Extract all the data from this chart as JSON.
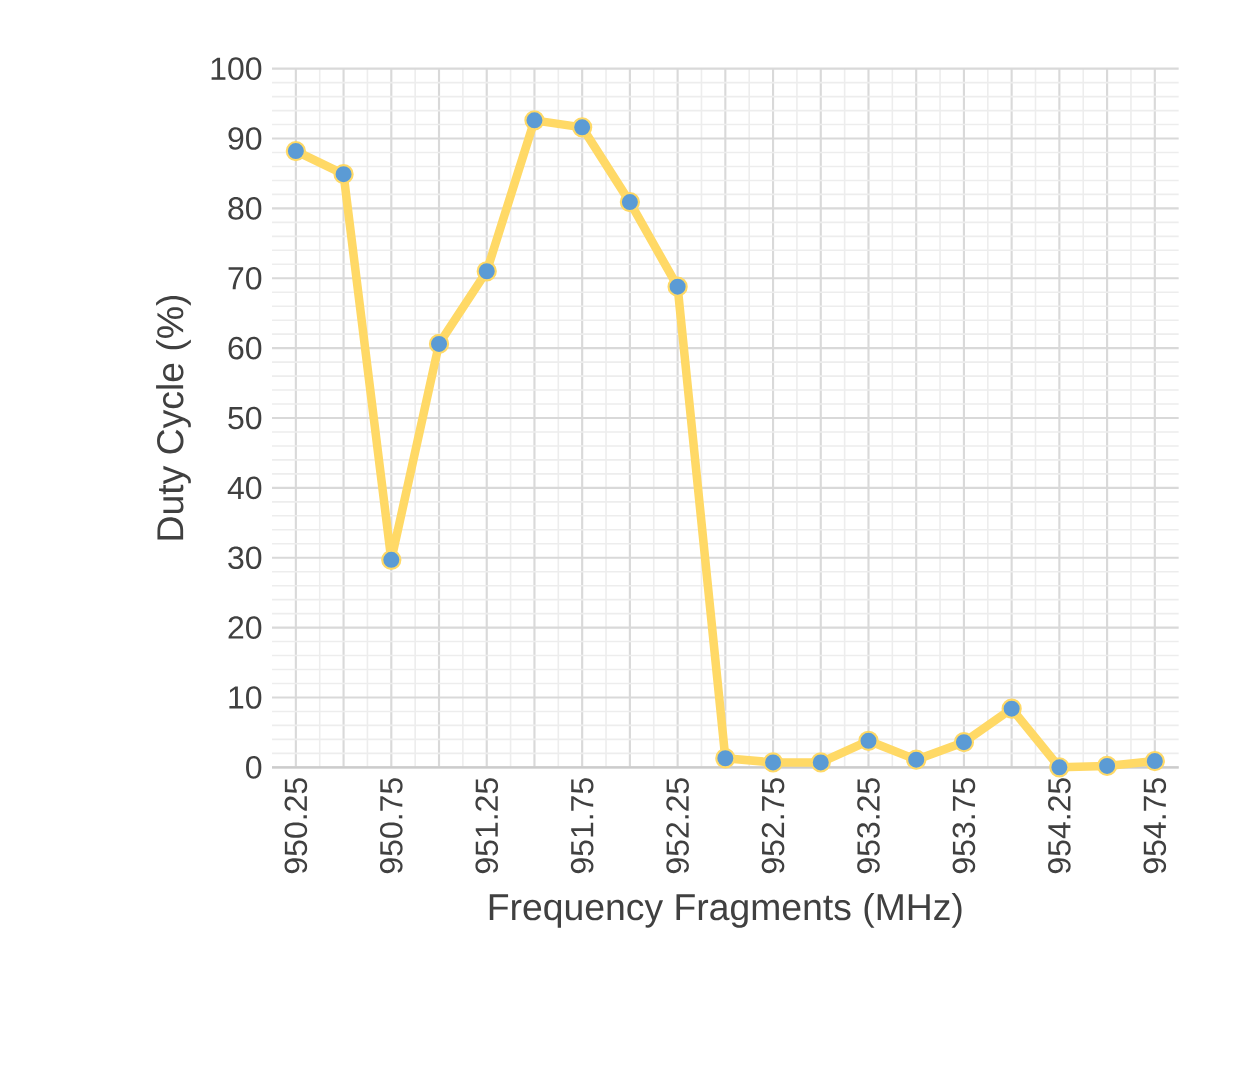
{
  "chart_data": {
    "type": "line",
    "xlabel": "Frequency Fragments (MHz)",
    "ylabel": "Duty Cycle (%)",
    "categories": [
      "950.25",
      null,
      "950.75",
      null,
      "951.25",
      null,
      "951.75",
      null,
      "952.25",
      null,
      "952.75",
      null,
      "953.25",
      null,
      "953.75",
      null,
      "954.25",
      null,
      "954.75"
    ],
    "series": [
      {
        "color": "#ffd966",
        "values": [
          88.2,
          84.9,
          29.7,
          60.6,
          71.0,
          92.6,
          91.6,
          80.9,
          68.8,
          1.3,
          0.7,
          0.7,
          3.8,
          1.1,
          3.6,
          8.4,
          0.0,
          0.2,
          0.9
        ]
      }
    ],
    "ylim": [
      0,
      100
    ],
    "yticks": [
      0,
      10,
      20,
      30,
      40,
      50,
      60,
      70,
      80,
      90,
      100
    ],
    "grid": true,
    "marker": "circle",
    "line_style": "solid"
  }
}
